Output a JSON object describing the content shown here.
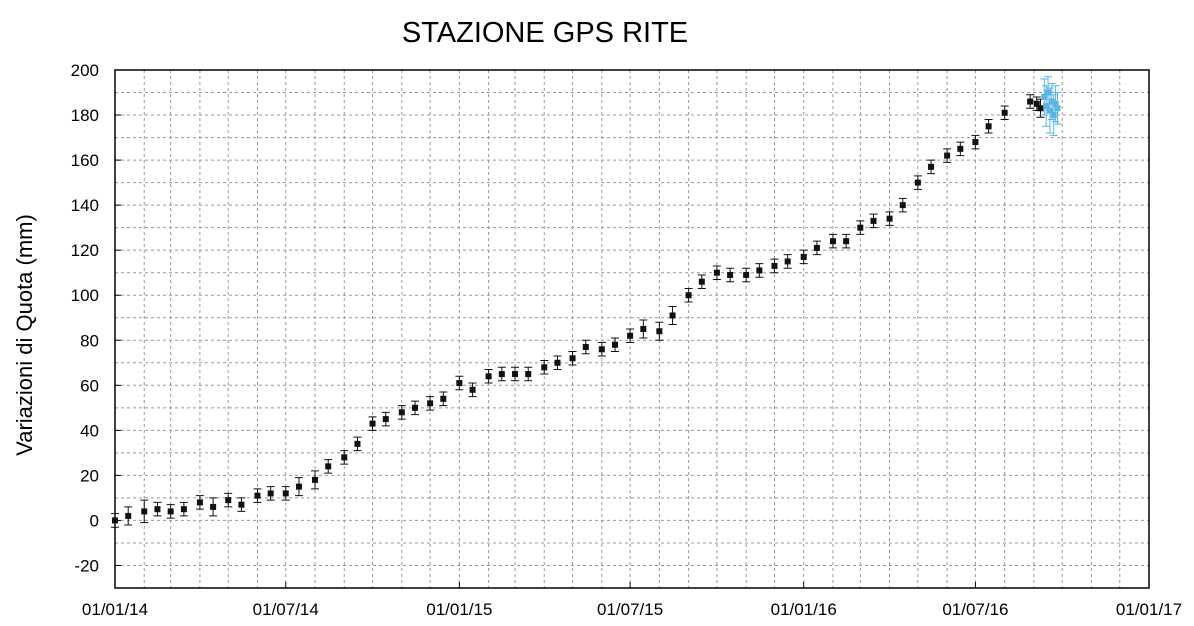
{
  "chart_data": {
    "type": "errorbar-scatter",
    "title": "STAZIONE GPS RITE",
    "y_label": "Variazioni di Quota (mm)",
    "series": [
      {
        "color": "#111111",
        "x": [
          "2014-01-01",
          "2014-01-15",
          "2014-02-01",
          "2014-02-15",
          "2014-03-01",
          "2014-03-15",
          "2014-04-01",
          "2014-04-15",
          "2014-05-01",
          "2014-05-15",
          "2014-06-01",
          "2014-06-15",
          "2014-07-01",
          "2014-07-15",
          "2014-08-01",
          "2014-08-15",
          "2014-09-01",
          "2014-09-15",
          "2014-10-01",
          "2014-10-15",
          "2014-11-01",
          "2014-11-15",
          "2014-12-01",
          "2014-12-15",
          "2015-01-01",
          "2015-01-15",
          "2015-02-01",
          "2015-02-15",
          "2015-03-01",
          "2015-03-15",
          "2015-04-01",
          "2015-04-15",
          "2015-05-01",
          "2015-05-15",
          "2015-06-01",
          "2015-06-15",
          "2015-07-01",
          "2015-07-15",
          "2015-08-01",
          "2015-08-15",
          "2015-09-01",
          "2015-09-15",
          "2015-10-01",
          "2015-10-15",
          "2015-11-01",
          "2015-11-15",
          "2015-12-01",
          "2015-12-15",
          "2016-01-01",
          "2016-01-15",
          "2016-02-01",
          "2016-02-15",
          "2016-03-01",
          "2016-03-15",
          "2016-04-01",
          "2016-04-15",
          "2016-05-01",
          "2016-05-15",
          "2016-06-01",
          "2016-06-15",
          "2016-07-01",
          "2016-07-15",
          "2016-08-01",
          "2016-08-28",
          "2016-09-04",
          "2016-09-08"
        ],
        "values": [
          0,
          2,
          4,
          5,
          4,
          5,
          8,
          6,
          9,
          7,
          11,
          12,
          12,
          15,
          18,
          24,
          28,
          34,
          43,
          45,
          48,
          50,
          52,
          54,
          61,
          58,
          64,
          65,
          65,
          65,
          68,
          70,
          72,
          77,
          76,
          78,
          82,
          85,
          84,
          91,
          100,
          106,
          110,
          109,
          109,
          111,
          113,
          115,
          117,
          121,
          124,
          124,
          130,
          133,
          134,
          140,
          150,
          157,
          162,
          165,
          168,
          175,
          181,
          186,
          185,
          183
        ],
        "errors": [
          3,
          4,
          5,
          3,
          3,
          3,
          3,
          4,
          3,
          3,
          3,
          3,
          3,
          4,
          4,
          3,
          3,
          3,
          3,
          3,
          3,
          3,
          3,
          3,
          3,
          3,
          3,
          3,
          3,
          3,
          3,
          3,
          3,
          3,
          3,
          3,
          3,
          4,
          4,
          4,
          3,
          3,
          3,
          3,
          3,
          3,
          3,
          3,
          3,
          3,
          3,
          3,
          3,
          3,
          3,
          3,
          3,
          3,
          3,
          3,
          3,
          3,
          3,
          3,
          3,
          4
        ]
      },
      {
        "color": "#5ab4e5",
        "x": [
          "2016-09-12",
          "2016-09-14",
          "2016-09-16",
          "2016-09-18",
          "2016-09-20",
          "2016-09-22",
          "2016-09-24",
          "2016-09-26"
        ],
        "values": [
          188,
          184,
          190,
          182,
          186,
          180,
          185,
          183
        ],
        "errors": [
          8,
          9,
          7,
          10,
          8,
          9,
          8,
          7
        ]
      }
    ],
    "xlim": [
      "2014-01-01",
      "2017-01-01"
    ],
    "xticks": [
      {
        "value": "2014-01-01",
        "label": "01/01/14"
      },
      {
        "value": "2014-07-01",
        "label": "01/07/14"
      },
      {
        "value": "2015-01-01",
        "label": "01/01/15"
      },
      {
        "value": "2015-07-01",
        "label": "01/07/15"
      },
      {
        "value": "2016-01-01",
        "label": "01/01/16"
      },
      {
        "value": "2016-07-01",
        "label": "01/07/16"
      },
      {
        "value": "2017-01-01",
        "label": "01/01/17"
      }
    ],
    "ylim": [
      -30,
      200
    ],
    "yticks": [
      -20,
      0,
      20,
      40,
      60,
      80,
      100,
      120,
      140,
      160,
      180,
      200
    ],
    "grid": true
  }
}
